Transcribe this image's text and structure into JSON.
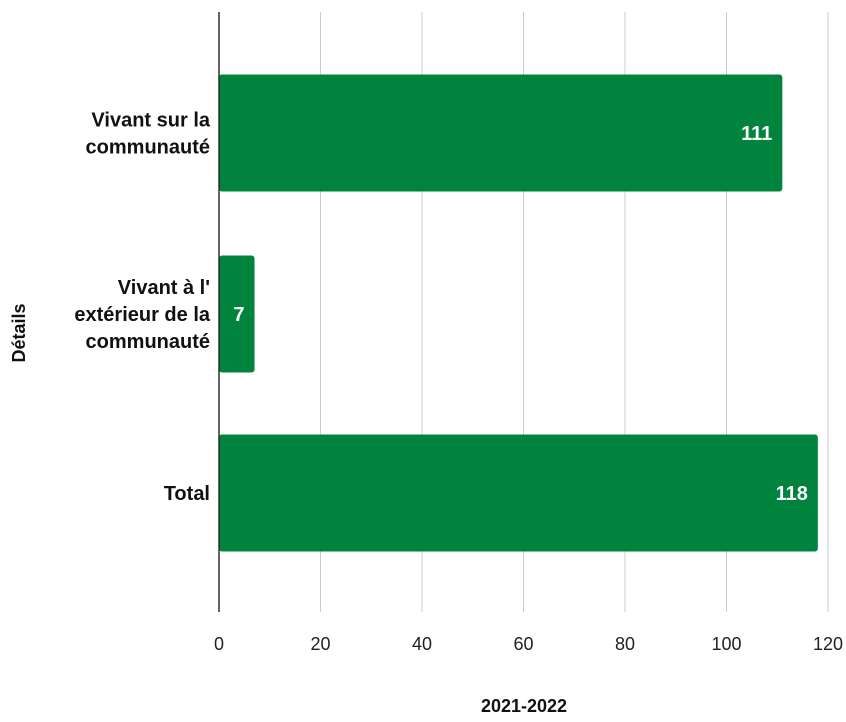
{
  "chart_data": {
    "type": "bar",
    "orientation": "horizontal",
    "categories": [
      [
        "Vivant sur la",
        "communauté"
      ],
      [
        "Vivant à l'",
        "extérieur de la",
        "communauté"
      ],
      [
        "Total"
      ]
    ],
    "values": [
      111,
      7,
      118
    ],
    "data_labels": [
      "111",
      "7",
      "118"
    ],
    "xlabel": "2021-2022",
    "ylabel": "Détails",
    "xlim": [
      0,
      120
    ],
    "xticks": [
      0,
      20,
      40,
      60,
      80,
      100,
      120
    ],
    "grid": true,
    "bar_color": "#00843d",
    "data_label_color": "#ffffff"
  }
}
